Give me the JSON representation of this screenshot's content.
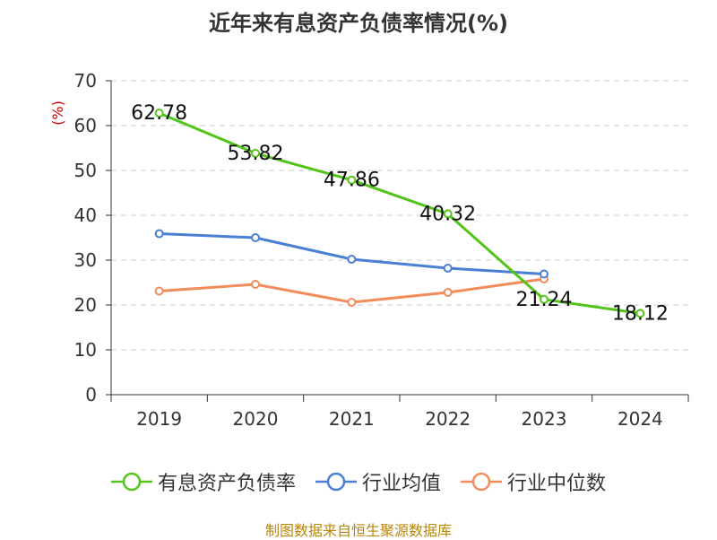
{
  "title": "近年来有息资产负债率情况(%)",
  "source": "制图数据来自恒生聚源数据库",
  "colors": {
    "axis": "#333333",
    "grid": "#cccccc",
    "unit": "#cc0000"
  },
  "chart_data": {
    "type": "line",
    "categories": [
      "2019",
      "2020",
      "2021",
      "2022",
      "2023",
      "2024"
    ],
    "ylabel": "(%)",
    "ylim": [
      0,
      70
    ],
    "yticks": [
      0,
      10,
      20,
      30,
      40,
      50,
      60,
      70
    ],
    "grid": true,
    "legend_position": "bottom",
    "series": [
      {
        "name": "有息资产负债率",
        "color": "#52c41a",
        "values": [
          62.78,
          53.82,
          47.86,
          40.32,
          21.24,
          18.12
        ],
        "data_labels": [
          "62.78",
          "53.82",
          "47.86",
          "40.32",
          "21.24",
          "18.12"
        ]
      },
      {
        "name": "行业均值",
        "color": "#4a7fd6",
        "values": [
          35.9,
          35.0,
          30.2,
          28.2,
          26.9,
          null
        ]
      },
      {
        "name": "行业中位数",
        "color": "#f28c5a",
        "values": [
          23.1,
          24.6,
          20.6,
          22.8,
          25.8,
          null
        ]
      }
    ]
  }
}
